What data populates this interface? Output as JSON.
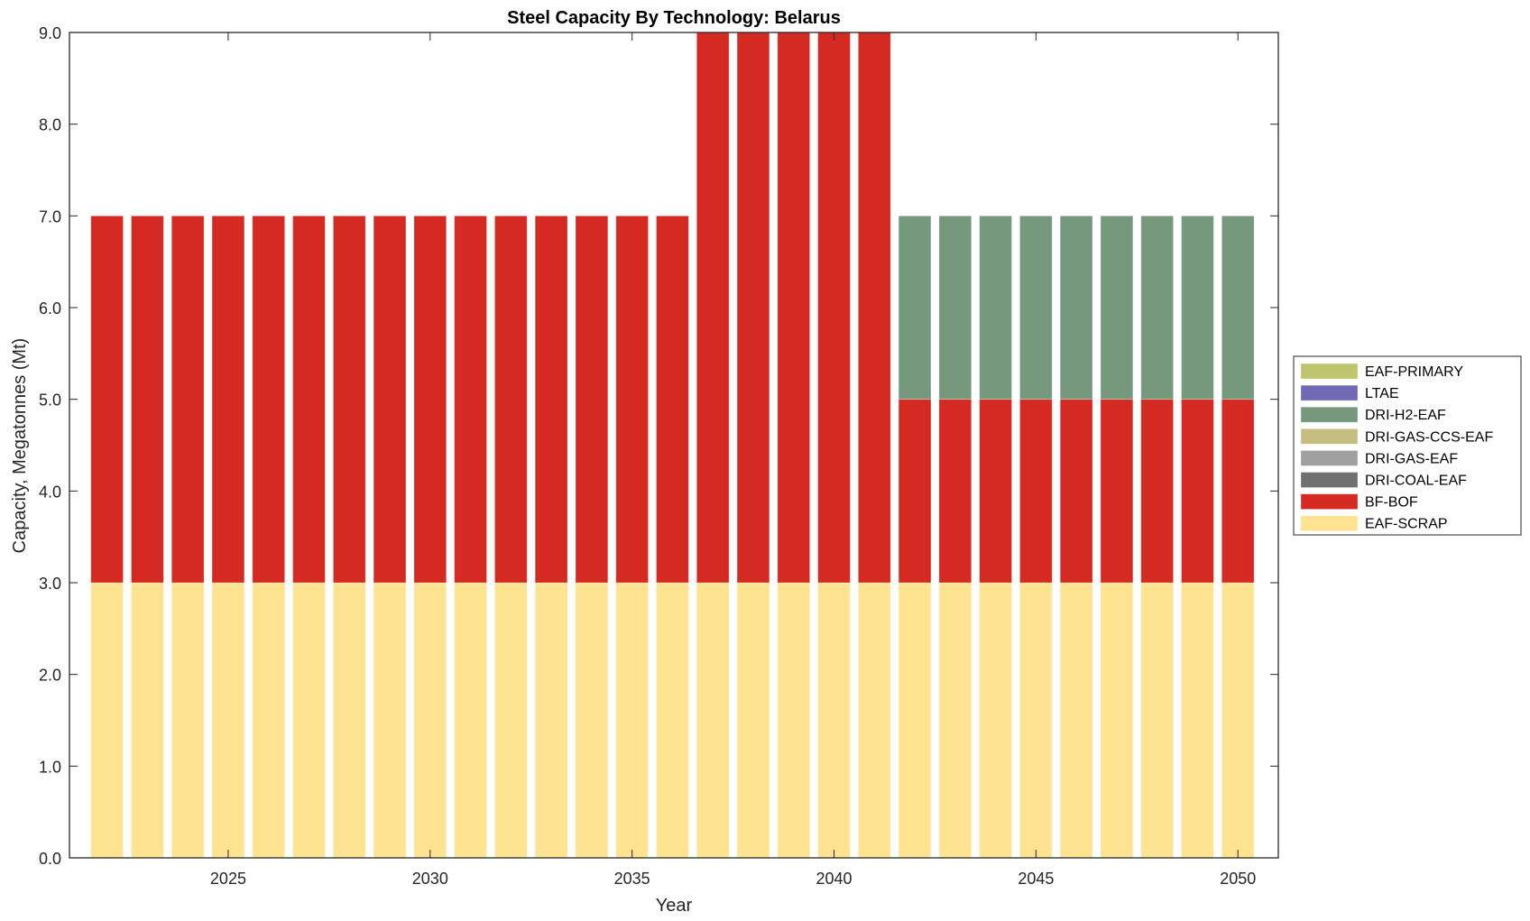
{
  "chart_data": {
    "type": "bar",
    "stacked": true,
    "title": "Steel Capacity By Technology: Belarus",
    "xlabel": "Year",
    "ylabel": "Capacity, Megatonnes (Mt)",
    "xlim": [
      2021.07,
      2051.0
    ],
    "ylim": [
      0,
      9
    ],
    "xticks": [
      2025,
      2030,
      2035,
      2040,
      2045,
      2050
    ],
    "xtick_labels": [
      "2025",
      "2030",
      "2035",
      "2040",
      "2045",
      "2050"
    ],
    "yticks": [
      0,
      1,
      2,
      3,
      4,
      5,
      6,
      7,
      8,
      9
    ],
    "ytick_labels": [
      "0.0",
      "1.0",
      "2.0",
      "3.0",
      "4.0",
      "5.0",
      "6.0",
      "7.0",
      "8.0",
      "9.0"
    ],
    "grid": false,
    "legend_position": "outside-right",
    "categories": [
      2022,
      2023,
      2024,
      2025,
      2026,
      2027,
      2028,
      2029,
      2030,
      2031,
      2032,
      2033,
      2034,
      2035,
      2036,
      2037,
      2038,
      2039,
      2040,
      2041,
      2042,
      2043,
      2044,
      2045,
      2046,
      2047,
      2048,
      2049,
      2050
    ],
    "series": [
      {
        "name": "EAF-SCRAP",
        "color": "#fee391",
        "values": [
          3,
          3,
          3,
          3,
          3,
          3,
          3,
          3,
          3,
          3,
          3,
          3,
          3,
          3,
          3,
          3,
          3,
          3,
          3,
          3,
          3,
          3,
          3,
          3,
          3,
          3,
          3,
          3,
          3
        ]
      },
      {
        "name": "BF-BOF",
        "color": "#d42a22",
        "values": [
          4,
          4,
          4,
          4,
          4,
          4,
          4,
          4,
          4,
          4,
          4,
          4,
          4,
          4,
          4,
          6,
          6,
          6,
          6,
          6,
          2,
          2,
          2,
          2,
          2,
          2,
          2,
          2,
          2
        ]
      },
      {
        "name": "DRI-COAL-EAF",
        "color": "#707070",
        "values": [
          0,
          0,
          0,
          0,
          0,
          0,
          0,
          0,
          0,
          0,
          0,
          0,
          0,
          0,
          0,
          0,
          0,
          0,
          0,
          0,
          0,
          0,
          0,
          0,
          0,
          0,
          0,
          0,
          0
        ]
      },
      {
        "name": "DRI-GAS-EAF",
        "color": "#a0a0a0",
        "values": [
          0,
          0,
          0,
          0,
          0,
          0,
          0,
          0,
          0,
          0,
          0,
          0,
          0,
          0,
          0,
          0,
          0,
          0,
          0,
          0,
          0,
          0,
          0,
          0,
          0,
          0,
          0,
          0,
          0
        ]
      },
      {
        "name": "DRI-GAS-CCS-EAF",
        "color": "#c6bd80",
        "values": [
          0,
          0,
          0,
          0,
          0,
          0,
          0,
          0,
          0,
          0,
          0,
          0,
          0,
          0,
          0,
          0,
          0,
          0,
          0,
          0,
          0,
          0,
          0,
          0,
          0,
          0,
          0,
          0,
          0
        ]
      },
      {
        "name": "DRI-H2-EAF",
        "color": "#76997d",
        "values": [
          0,
          0,
          0,
          0,
          0,
          0,
          0,
          0,
          0,
          0,
          0,
          0,
          0,
          0,
          0,
          0,
          0,
          0,
          0,
          0,
          2,
          2,
          2,
          2,
          2,
          2,
          2,
          2,
          2
        ]
      },
      {
        "name": "LTAE",
        "color": "#7269b5",
        "values": [
          0,
          0,
          0,
          0,
          0,
          0,
          0,
          0,
          0,
          0,
          0,
          0,
          0,
          0,
          0,
          0,
          0,
          0,
          0,
          0,
          0,
          0,
          0,
          0,
          0,
          0,
          0,
          0,
          0
        ]
      },
      {
        "name": "EAF-PRIMARY",
        "color": "#bec56c",
        "values": [
          0,
          0,
          0,
          0,
          0,
          0,
          0,
          0,
          0,
          0,
          0,
          0,
          0,
          0,
          0,
          0,
          0,
          0,
          0,
          0,
          0,
          0,
          0,
          0,
          0,
          0,
          0,
          0,
          0
        ]
      }
    ],
    "legend_order": [
      "EAF-PRIMARY",
      "LTAE",
      "DRI-H2-EAF",
      "DRI-GAS-CCS-EAF",
      "DRI-GAS-EAF",
      "DRI-COAL-EAF",
      "BF-BOF",
      "EAF-SCRAP"
    ]
  }
}
